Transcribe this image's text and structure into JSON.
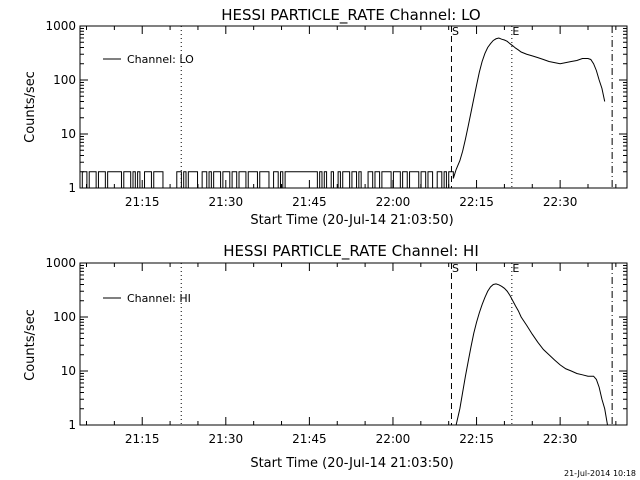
{
  "footer_timestamp": "21-Jul-2014 10:18",
  "chart_data": [
    {
      "type": "line",
      "title": "HESSI PARTICLE_RATE Channel: LO",
      "xlabel": "Start Time (20-Jul-14 21:03:50)",
      "ylabel": "Counts/sec",
      "x_unit": "time of day (20-Jul-2014)",
      "x_ticks": [
        "21:15",
        "21:30",
        "21:45",
        "22:00",
        "22:15",
        "22:30"
      ],
      "xlim": [
        "21:03:50",
        "22:42:00"
      ],
      "y_scale": "log",
      "ylim": [
        1,
        1000
      ],
      "y_ticks": [
        "1",
        "10",
        "100",
        "1000"
      ],
      "grid": false,
      "legend": "top-left",
      "legend_label": "Channel: LO",
      "series": [
        {
          "name": "Channel: LO",
          "toggle_signal": {
            "x_from": "21:03:50",
            "x_to": "22:10:50",
            "low": 1,
            "high": 2,
            "pattern": "011011101110111111011101010011101111000000110101111001101011101110110111011110111100110101111111111111101010010010111011010001101101111011101101111011011001101011"
          },
          "x": [
            "22:10:50",
            "22:11:20",
            "22:12:00",
            "22:12:30",
            "22:13:00",
            "22:13:30",
            "22:14:00",
            "22:14:30",
            "22:15:00",
            "22:15:30",
            "22:16:00",
            "22:16:30",
            "22:17:00",
            "22:17:30",
            "22:18:00",
            "22:18:30",
            "22:19:00",
            "22:19:30",
            "22:20:00",
            "22:20:30",
            "22:21:00",
            "22:21:30",
            "22:22:00",
            "22:22:30",
            "22:23:00",
            "22:24:00",
            "22:25:00",
            "22:26:00",
            "22:27:00",
            "22:28:00",
            "22:29:00",
            "22:30:00",
            "22:31:00",
            "22:32:00",
            "22:33:00",
            "22:34:00",
            "22:35:00",
            "22:35:30",
            "22:36:00",
            "22:36:30",
            "22:37:00",
            "22:37:30",
            "22:38:00"
          ],
          "y": [
            1.5,
            2.2,
            3.2,
            4.8,
            8,
            14,
            25,
            45,
            80,
            140,
            220,
            310,
            400,
            470,
            540,
            580,
            600,
            570,
            550,
            520,
            470,
            430,
            390,
            360,
            330,
            300,
            280,
            260,
            240,
            220,
            210,
            200,
            210,
            220,
            230,
            250,
            250,
            240,
            200,
            150,
            100,
            70,
            40
          ]
        }
      ],
      "vlines": [
        {
          "x": "21:22:00",
          "style": "dotted",
          "label": ""
        },
        {
          "x": "22:10:30",
          "style": "dashed",
          "label": "S"
        },
        {
          "x": "22:21:20",
          "style": "dotted",
          "label": "E"
        },
        {
          "x": "22:39:20",
          "style": "dashdot",
          "label": ""
        }
      ]
    },
    {
      "type": "line",
      "title": "HESSI PARTICLE_RATE Channel: HI",
      "xlabel": "Start Time (20-Jul-14 21:03:50)",
      "ylabel": "Counts/sec",
      "x_unit": "time of day (20-Jul-2014)",
      "x_ticks": [
        "21:15",
        "21:30",
        "21:45",
        "22:00",
        "22:15",
        "22:30"
      ],
      "xlim": [
        "21:03:50",
        "22:42:00"
      ],
      "y_scale": "log",
      "ylim": [
        1,
        1000
      ],
      "y_ticks": [
        "1",
        "10",
        "100",
        "1000"
      ],
      "grid": false,
      "legend": "top-left",
      "legend_label": "Channel: HI",
      "series": [
        {
          "name": "Channel: HI",
          "x": [
            "22:11:20",
            "22:12:00",
            "22:12:30",
            "22:13:00",
            "22:13:30",
            "22:14:00",
            "22:14:30",
            "22:15:00",
            "22:15:30",
            "22:16:00",
            "22:16:30",
            "22:17:00",
            "22:17:30",
            "22:18:00",
            "22:18:30",
            "22:19:00",
            "22:19:30",
            "22:20:00",
            "22:20:30",
            "22:21:00",
            "22:21:30",
            "22:22:00",
            "22:22:30",
            "22:23:00",
            "22:24:00",
            "22:25:00",
            "22:26:00",
            "22:27:00",
            "22:28:00",
            "22:29:00",
            "22:30:00",
            "22:31:00",
            "22:32:00",
            "22:33:00",
            "22:34:00",
            "22:35:00",
            "22:36:00",
            "22:36:30",
            "22:37:00",
            "22:37:30",
            "22:38:00",
            "22:38:30"
          ],
          "y": [
            1,
            2,
            4,
            8,
            15,
            28,
            50,
            80,
            120,
            170,
            230,
            300,
            360,
            400,
            410,
            395,
            370,
            340,
            300,
            250,
            200,
            160,
            130,
            100,
            70,
            48,
            34,
            25,
            20,
            16,
            13,
            11,
            10,
            9,
            8.5,
            8,
            8,
            7,
            5,
            3,
            2,
            1
          ]
        }
      ],
      "vlines": [
        {
          "x": "21:22:00",
          "style": "dotted",
          "label": ""
        },
        {
          "x": "22:10:30",
          "style": "dashed",
          "label": "S"
        },
        {
          "x": "22:21:20",
          "style": "dotted",
          "label": "E"
        },
        {
          "x": "22:39:20",
          "style": "dashdot",
          "label": ""
        }
      ]
    }
  ]
}
